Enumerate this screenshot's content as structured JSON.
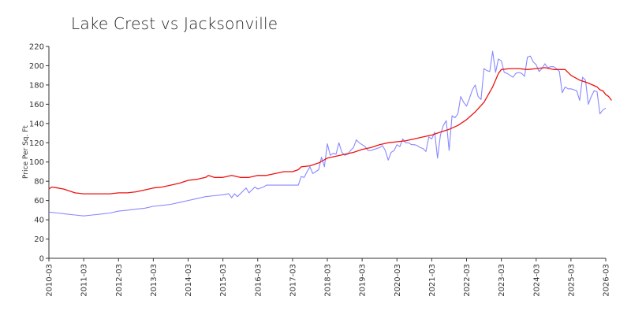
{
  "chart_data": {
    "type": "line",
    "title": "Lake Crest vs Jacksonville",
    "xlabel": "",
    "ylabel": "Price Per Sq. Ft",
    "ylim": [
      0,
      220
    ],
    "yticks": [
      0,
      20,
      40,
      60,
      80,
      100,
      120,
      140,
      160,
      180,
      200,
      220
    ],
    "xticks": [
      "2010-03",
      "2011-03",
      "2012-03",
      "2013-03",
      "2014-03",
      "2015-03",
      "2016-03",
      "2017-03",
      "2018-03",
      "2019-03",
      "2020-03",
      "2021-03",
      "2022-03",
      "2023-03",
      "2024-03",
      "2025-03",
      "2026-03"
    ],
    "xlim": [
      "2010-03",
      "2026-03"
    ],
    "grid": false,
    "legend": "none",
    "series": [
      {
        "color": "#8888ff",
        "points": [
          [
            "2010-03",
            48
          ],
          [
            "2010-06",
            47
          ],
          [
            "2010-09",
            46
          ],
          [
            "2010-12",
            45
          ],
          [
            "2011-03",
            44
          ],
          [
            "2011-06",
            45
          ],
          [
            "2011-09",
            46
          ],
          [
            "2011-12",
            47
          ],
          [
            "2012-03",
            49
          ],
          [
            "2012-06",
            50
          ],
          [
            "2012-09",
            51
          ],
          [
            "2012-12",
            52
          ],
          [
            "2013-03",
            54
          ],
          [
            "2013-06",
            55
          ],
          [
            "2013-09",
            56
          ],
          [
            "2013-12",
            58
          ],
          [
            "2014-03",
            60
          ],
          [
            "2014-06",
            62
          ],
          [
            "2014-09",
            64
          ],
          [
            "2014-12",
            65
          ],
          [
            "2015-03",
            66
          ],
          [
            "2015-05",
            67
          ],
          [
            "2015-06",
            63
          ],
          [
            "2015-07",
            67
          ],
          [
            "2015-08",
            64
          ],
          [
            "2015-10",
            70
          ],
          [
            "2015-11",
            73
          ],
          [
            "2015-12",
            68
          ],
          [
            "2016-02",
            74
          ],
          [
            "2016-03",
            72
          ],
          [
            "2016-05",
            74
          ],
          [
            "2016-06",
            76
          ],
          [
            "2016-09",
            76
          ],
          [
            "2016-12",
            76
          ],
          [
            "2017-03",
            76
          ],
          [
            "2017-05",
            76
          ],
          [
            "2017-06",
            85
          ],
          [
            "2017-07",
            84
          ],
          [
            "2017-08",
            90
          ],
          [
            "2017-09",
            95
          ],
          [
            "2017-10",
            88
          ],
          [
            "2017-11",
            90
          ],
          [
            "2017-12",
            92
          ],
          [
            "2018-01",
            105
          ],
          [
            "2018-02",
            95
          ],
          [
            "2018-03",
            119
          ],
          [
            "2018-04",
            107
          ],
          [
            "2018-05",
            109
          ],
          [
            "2018-06",
            108
          ],
          [
            "2018-07",
            120
          ],
          [
            "2018-08",
            110
          ],
          [
            "2018-09",
            107
          ],
          [
            "2018-10",
            108
          ],
          [
            "2018-11",
            112
          ],
          [
            "2018-12",
            115
          ],
          [
            "2019-01",
            123
          ],
          [
            "2019-02",
            120
          ],
          [
            "2019-03",
            118
          ],
          [
            "2019-04",
            116
          ],
          [
            "2019-05",
            112
          ],
          [
            "2019-06",
            112
          ],
          [
            "2019-07",
            113
          ],
          [
            "2019-08",
            114
          ],
          [
            "2019-09",
            115
          ],
          [
            "2019-10",
            117
          ],
          [
            "2019-11",
            112
          ],
          [
            "2019-12",
            102
          ],
          [
            "2020-01",
            110
          ],
          [
            "2020-02",
            112
          ],
          [
            "2020-03",
            118
          ],
          [
            "2020-04",
            116
          ],
          [
            "2020-05",
            124
          ],
          [
            "2020-06",
            120
          ],
          [
            "2020-07",
            120
          ],
          [
            "2020-08",
            118
          ],
          [
            "2020-09",
            118
          ],
          [
            "2020-10",
            117
          ],
          [
            "2020-11",
            115
          ],
          [
            "2020-12",
            114
          ],
          [
            "2021-01",
            111
          ],
          [
            "2021-02",
            126
          ],
          [
            "2021-03",
            124
          ],
          [
            "2021-04",
            131
          ],
          [
            "2021-05",
            104
          ],
          [
            "2021-06",
            128
          ],
          [
            "2021-07",
            138
          ],
          [
            "2021-08",
            143
          ],
          [
            "2021-09",
            112
          ],
          [
            "2021-10",
            148
          ],
          [
            "2021-11",
            146
          ],
          [
            "2021-12",
            150
          ],
          [
            "2022-01",
            168
          ],
          [
            "2022-02",
            162
          ],
          [
            "2022-03",
            158
          ],
          [
            "2022-04",
            166
          ],
          [
            "2022-05",
            175
          ],
          [
            "2022-06",
            180
          ],
          [
            "2022-07",
            168
          ],
          [
            "2022-08",
            165
          ],
          [
            "2022-09",
            197
          ],
          [
            "2022-10",
            195
          ],
          [
            "2022-11",
            194
          ],
          [
            "2022-12",
            215
          ],
          [
            "2023-01",
            193
          ],
          [
            "2023-02",
            207
          ],
          [
            "2023-03",
            205
          ],
          [
            "2023-04",
            193
          ],
          [
            "2023-05",
            192
          ],
          [
            "2023-06",
            190
          ],
          [
            "2023-07",
            188
          ],
          [
            "2023-08",
            192
          ],
          [
            "2023-09",
            193
          ],
          [
            "2023-10",
            192
          ],
          [
            "2023-11",
            189
          ],
          [
            "2023-12",
            209
          ],
          [
            "2024-01",
            210
          ],
          [
            "2024-02",
            204
          ],
          [
            "2024-03",
            201
          ],
          [
            "2024-04",
            194
          ],
          [
            "2024-05",
            197
          ],
          [
            "2024-06",
            202
          ],
          [
            "2024-07",
            198
          ],
          [
            "2024-08",
            199
          ],
          [
            "2024-09",
            199
          ],
          [
            "2024-10",
            197
          ],
          [
            "2024-11",
            194
          ],
          [
            "2024-12",
            172
          ],
          [
            "2025-01",
            178
          ],
          [
            "2025-02",
            176
          ],
          [
            "2025-03",
            176
          ],
          [
            "2025-04",
            175
          ],
          [
            "2025-05",
            174
          ],
          [
            "2025-06",
            164
          ],
          [
            "2025-07",
            188
          ],
          [
            "2025-08",
            185
          ],
          [
            "2025-09",
            160
          ],
          [
            "2025-10",
            168
          ],
          [
            "2025-11",
            174
          ],
          [
            "2025-12",
            173
          ],
          [
            "2026-01",
            150
          ],
          [
            "2026-02",
            154
          ],
          [
            "2026-03",
            156
          ]
        ]
      },
      {
        "color": "#ee1111",
        "points": [
          [
            "2010-03",
            72
          ],
          [
            "2010-04",
            74
          ],
          [
            "2010-06",
            73
          ],
          [
            "2010-08",
            72
          ],
          [
            "2010-10",
            70
          ],
          [
            "2010-12",
            68
          ],
          [
            "2011-03",
            67
          ],
          [
            "2011-06",
            67
          ],
          [
            "2011-09",
            67
          ],
          [
            "2011-12",
            67
          ],
          [
            "2012-03",
            68
          ],
          [
            "2012-06",
            68
          ],
          [
            "2012-09",
            69
          ],
          [
            "2012-12",
            71
          ],
          [
            "2013-03",
            73
          ],
          [
            "2013-06",
            74
          ],
          [
            "2013-09",
            76
          ],
          [
            "2013-12",
            78
          ],
          [
            "2014-03",
            81
          ],
          [
            "2014-06",
            82
          ],
          [
            "2014-09",
            84
          ],
          [
            "2014-10",
            86
          ],
          [
            "2014-12",
            84
          ],
          [
            "2015-03",
            84
          ],
          [
            "2015-06",
            86
          ],
          [
            "2015-09",
            84
          ],
          [
            "2015-12",
            84
          ],
          [
            "2016-03",
            86
          ],
          [
            "2016-06",
            86
          ],
          [
            "2016-09",
            88
          ],
          [
            "2016-12",
            90
          ],
          [
            "2017-03",
            90
          ],
          [
            "2017-05",
            92
          ],
          [
            "2017-06",
            95
          ],
          [
            "2017-09",
            96
          ],
          [
            "2017-12",
            99
          ],
          [
            "2018-03",
            104
          ],
          [
            "2018-06",
            106
          ],
          [
            "2018-09",
            108
          ],
          [
            "2018-12",
            110
          ],
          [
            "2019-03",
            113
          ],
          [
            "2019-06",
            115
          ],
          [
            "2019-09",
            118
          ],
          [
            "2019-12",
            120
          ],
          [
            "2020-03",
            121
          ],
          [
            "2020-06",
            122
          ],
          [
            "2020-09",
            124
          ],
          [
            "2020-12",
            126
          ],
          [
            "2021-03",
            128
          ],
          [
            "2021-06",
            131
          ],
          [
            "2021-09",
            134
          ],
          [
            "2021-12",
            138
          ],
          [
            "2022-03",
            144
          ],
          [
            "2022-06",
            152
          ],
          [
            "2022-09",
            162
          ],
          [
            "2022-12",
            178
          ],
          [
            "2023-02",
            192
          ],
          [
            "2023-03",
            196
          ],
          [
            "2023-06",
            197
          ],
          [
            "2023-09",
            197
          ],
          [
            "2023-12",
            196
          ],
          [
            "2024-03",
            197
          ],
          [
            "2024-06",
            198
          ],
          [
            "2024-09",
            196
          ],
          [
            "2024-12",
            196
          ],
          [
            "2025-01",
            196
          ],
          [
            "2025-03",
            190
          ],
          [
            "2025-06",
            185
          ],
          [
            "2025-09",
            182
          ],
          [
            "2025-12",
            178
          ],
          [
            "2026-01",
            175
          ],
          [
            "2026-02",
            174
          ],
          [
            "2026-03",
            170
          ],
          [
            "2026-04",
            168
          ],
          [
            "2026-05",
            164
          ]
        ]
      }
    ]
  }
}
